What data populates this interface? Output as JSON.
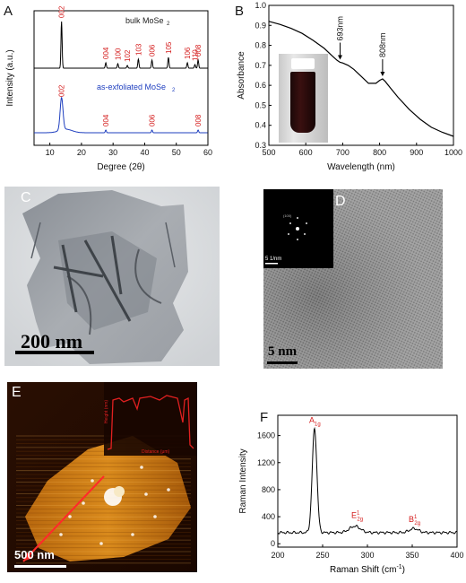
{
  "panel_labels": {
    "a": "A",
    "b": "B",
    "c": "C",
    "d": "D",
    "e": "E",
    "f": "F"
  },
  "chart_data": [
    {
      "type": "line",
      "panel": "A",
      "xlabel": "Degree (2θ)",
      "ylabel": "Intensity (a.u.)",
      "xlim": [
        5,
        60
      ],
      "xticks": [
        10,
        20,
        30,
        40,
        50,
        60
      ],
      "series": [
        {
          "name": "bulk MoSe2",
          "color": "#000000",
          "peaks": [
            {
              "x": 13.7,
              "h": 52,
              "label": "002"
            },
            {
              "x": 27.7,
              "h": 6,
              "label": "004"
            },
            {
              "x": 31.5,
              "h": 5,
              "label": "100"
            },
            {
              "x": 34.5,
              "h": 3,
              "label": "102"
            },
            {
              "x": 38.0,
              "h": 10,
              "label": "103"
            },
            {
              "x": 42.3,
              "h": 9,
              "label": "006"
            },
            {
              "x": 47.5,
              "h": 12,
              "label": "105"
            },
            {
              "x": 53.5,
              "h": 6,
              "label": "106"
            },
            {
              "x": 55.9,
              "h": 4,
              "label": "110"
            },
            {
              "x": 56.9,
              "h": 9,
              "label": "008"
            }
          ]
        },
        {
          "name": "as-exfoliated MoSe2",
          "color": "#1f3fbf",
          "peaks": [
            {
              "x": 13.7,
              "h": 36,
              "label": "002"
            },
            {
              "x": 27.7,
              "h": 3,
              "label": "004"
            },
            {
              "x": 42.3,
              "h": 3,
              "label": "006"
            },
            {
              "x": 56.9,
              "h": 3,
              "label": "008"
            }
          ]
        }
      ],
      "legend": [
        "bulk MoSe2",
        "as-exfoliated MoSe2"
      ],
      "label_color": "#d41a1a"
    },
    {
      "type": "line",
      "panel": "B",
      "xlabel": "Wavelength (nm)",
      "ylabel": "Absorbance",
      "xlim": [
        500,
        1000
      ],
      "ylim": [
        0.3,
        1.0
      ],
      "xticks": [
        500,
        600,
        700,
        800,
        900,
        1000
      ],
      "yticks": [
        0.3,
        0.4,
        0.5,
        0.6,
        0.7,
        0.8,
        0.9,
        1.0
      ],
      "series": [
        {
          "name": "",
          "color": "#000000",
          "x": [
            500,
            530,
            560,
            590,
            620,
            650,
            670,
            685,
            693,
            700,
            715,
            730,
            750,
            770,
            790,
            800,
            808,
            815,
            830,
            850,
            880,
            910,
            940,
            970,
            1000
          ],
          "y": [
            0.92,
            0.905,
            0.885,
            0.86,
            0.825,
            0.785,
            0.75,
            0.725,
            0.715,
            0.712,
            0.7,
            0.68,
            0.645,
            0.61,
            0.61,
            0.625,
            0.632,
            0.62,
            0.585,
            0.54,
            0.48,
            0.43,
            0.39,
            0.365,
            0.345
          ]
        }
      ],
      "annotations": [
        {
          "x": 693,
          "y": 0.715,
          "text": "693nm"
        },
        {
          "x": 808,
          "y": 0.632,
          "text": "808nm"
        }
      ]
    },
    {
      "type": "line",
      "panel": "F",
      "xlabel": "Raman Shift (cm",
      "xlabel_sup": "-1",
      "xlabel_end": ")",
      "ylabel": "Raman Intensity",
      "xlim": [
        200,
        400
      ],
      "ylim": [
        -50,
        1900
      ],
      "xticks": [
        200,
        250,
        300,
        350,
        400
      ],
      "yticks": [
        0,
        400,
        800,
        1200,
        1600
      ],
      "series": [
        {
          "name": "",
          "color": "#000000",
          "peaks": [
            {
              "x": 241,
              "h": 1540,
              "w": 2.6
            },
            {
              "x": 286,
              "h": 95,
              "w": 6
            },
            {
              "x": 352,
              "h": 60,
              "w": 5
            }
          ],
          "baseline": 165
        }
      ],
      "peak_labels": [
        {
          "x": 241,
          "y": 1790,
          "main": "A",
          "sub": "1g",
          "sup": ""
        },
        {
          "x": 288,
          "y": 380,
          "main": "E",
          "sub": "2g",
          "sup": "1"
        },
        {
          "x": 352,
          "y": 320,
          "main": "B",
          "sub": "2g",
          "sup": "1"
        }
      ],
      "label_color": "#d41a1a"
    },
    {
      "type": "line",
      "panel": "E-inset",
      "ylabel": "Height (nm)",
      "xlabel": "Distance (μm)",
      "color": "#e02020"
    }
  ],
  "panel_c": {
    "scale_text": "200 nm"
  },
  "panel_d": {
    "scale_text": "5 nm",
    "inset_scale": "5 1/nm"
  },
  "panel_e": {
    "scale_text": "500 nm"
  }
}
